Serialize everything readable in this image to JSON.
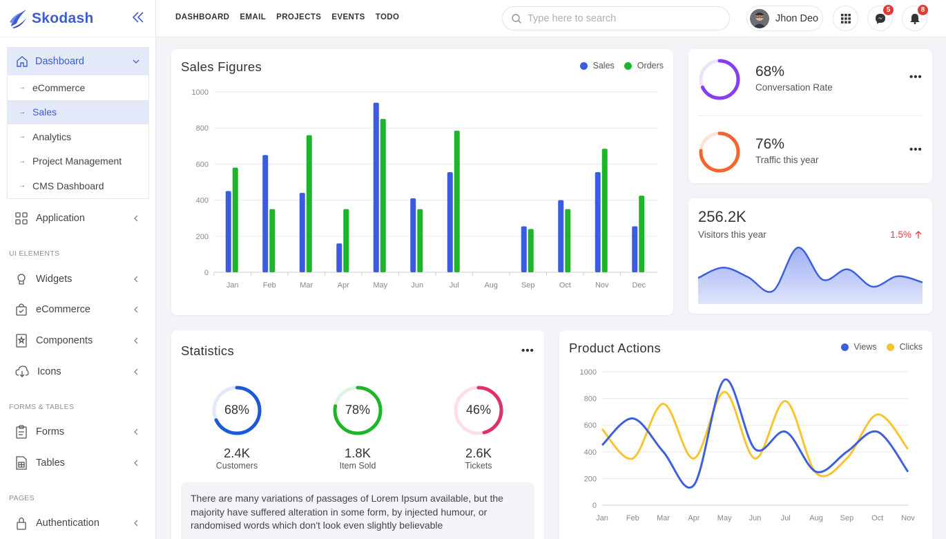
{
  "brand": {
    "name": "Skodash"
  },
  "sidebar": {
    "dashboard": {
      "label": "Dashboard",
      "items": [
        {
          "label": "eCommerce",
          "active": false
        },
        {
          "label": "Sales",
          "active": true
        },
        {
          "label": "Analytics",
          "active": false
        },
        {
          "label": "Project Management",
          "active": false
        },
        {
          "label": "CMS Dashboard",
          "active": false
        }
      ]
    },
    "application": "Application",
    "sections": {
      "ui": "UI ELEMENTS",
      "forms": "FORMS & TABLES",
      "pages": "PAGES"
    },
    "items": {
      "widgets": "Widgets",
      "ecommerce": "eCommerce",
      "components": "Components",
      "icons": "Icons",
      "forms": "Forms",
      "tables": "Tables",
      "authentication": "Authentication"
    }
  },
  "topbar": {
    "nav": [
      "DASHBOARD",
      "EMAIL",
      "PROJECTS",
      "EVENTS",
      "TODO"
    ],
    "search_placeholder": "Type here to search",
    "user_name": "Jhon Deo",
    "messages_count": "5",
    "notifications_count": "8"
  },
  "colors": {
    "primary": "#3c5ccf",
    "sales": "#3b5be0",
    "orders": "#1db52a",
    "views": "#3d5fde",
    "clicks": "#f7c331",
    "conversion": "#8a3cf0",
    "traffic": "#f26530",
    "up": "#e53935"
  },
  "sales_card": {
    "title": "Sales Figures",
    "legend": [
      "Sales",
      "Orders"
    ]
  },
  "conversion": {
    "value": "68%",
    "label": "Conversation Rate",
    "percent": 68
  },
  "traffic": {
    "value": "76%",
    "label": "Traffic this year",
    "percent": 76
  },
  "visitors": {
    "value": "256.2K",
    "label": "Visitors this year",
    "change": "1.5%"
  },
  "statistics": {
    "title": "Statistics",
    "items": [
      {
        "percent_text": "68%",
        "percent": 68,
        "value": "2.4K",
        "label": "Customers",
        "color": "#1b59d8"
      },
      {
        "percent_text": "78%",
        "percent": 78,
        "value": "1.8K",
        "label": "Item Sold",
        "color": "#1db52a"
      },
      {
        "percent_text": "46%",
        "percent": 46,
        "value": "2.6K",
        "label": "Tickets",
        "color": "#e0306a"
      }
    ],
    "text": "There are many variations of passages of Lorem Ipsum available, but the majority have suffered alteration in some form, by injected humour, or randomised words which don't look even slightly believable"
  },
  "product_card": {
    "title": "Product Actions",
    "legend": [
      "Views",
      "Clicks"
    ]
  },
  "chart_data": [
    {
      "type": "bar",
      "title": "Sales Figures",
      "categories": [
        "Jan",
        "Feb",
        "Mar",
        "Apr",
        "May",
        "Jun",
        "Jul",
        "Aug",
        "Sep",
        "Oct",
        "Nov",
        "Dec"
      ],
      "ylim": [
        0,
        1000
      ],
      "yticks": [
        0,
        200,
        400,
        600,
        800,
        1000
      ],
      "series": [
        {
          "name": "Sales",
          "values": [
            450,
            650,
            440,
            160,
            940,
            410,
            555,
            null,
            255,
            400,
            555,
            255
          ]
        },
        {
          "name": "Orders",
          "values": [
            580,
            350,
            760,
            350,
            850,
            350,
            785,
            null,
            240,
            350,
            685,
            425
          ]
        }
      ],
      "legend": "top-right",
      "grid": true
    },
    {
      "type": "area",
      "values": [
        300,
        420,
        310,
        150,
        650,
        280,
        400,
        200,
        320,
        250
      ]
    },
    {
      "type": "line",
      "title": "Product Actions",
      "categories": [
        "Jan",
        "Feb",
        "Mar",
        "Apr",
        "May",
        "Jun",
        "Jul",
        "Aug",
        "Sep",
        "Oct",
        "Nov"
      ],
      "ylim": [
        0,
        1000
      ],
      "yticks": [
        0,
        200,
        400,
        600,
        800,
        1000
      ],
      "series": [
        {
          "name": "Views",
          "values": [
            450,
            650,
            400,
            150,
            940,
            420,
            550,
            250,
            400,
            550,
            250
          ]
        },
        {
          "name": "Clicks",
          "values": [
            570,
            350,
            760,
            350,
            850,
            350,
            780,
            240,
            350,
            680,
            420
          ]
        }
      ],
      "legend": "top-right",
      "grid": true
    }
  ]
}
